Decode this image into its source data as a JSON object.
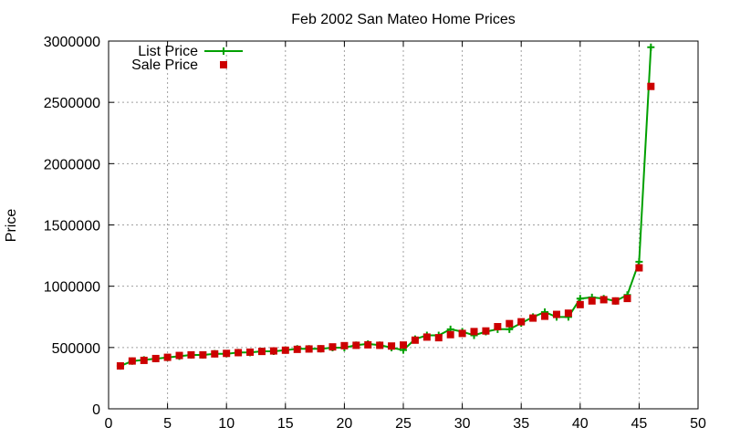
{
  "chart_data": {
    "type": "line",
    "title": "Feb 2002 San Mateo Home Prices",
    "xlabel": "",
    "ylabel": "Price",
    "xlim": [
      0,
      50
    ],
    "ylim": [
      0,
      3000000
    ],
    "xticks": [
      0,
      5,
      10,
      15,
      20,
      25,
      30,
      35,
      40,
      45,
      50
    ],
    "yticks": [
      0,
      500000,
      1000000,
      1500000,
      2000000,
      2500000,
      3000000
    ],
    "grid": true,
    "legend_position": "top-left",
    "x": [
      1,
      2,
      3,
      4,
      5,
      6,
      7,
      8,
      9,
      10,
      11,
      12,
      13,
      14,
      15,
      16,
      17,
      18,
      19,
      20,
      21,
      22,
      23,
      24,
      25,
      26,
      27,
      28,
      29,
      30,
      31,
      32,
      33,
      34,
      35,
      36,
      37,
      38,
      39,
      40,
      41,
      42,
      43,
      44,
      45,
      46
    ],
    "series": [
      {
        "name": "List Price",
        "style": "line-plus",
        "color": "#00a000",
        "values": [
          349000,
          389000,
          399000,
          409000,
          419000,
          429000,
          439000,
          439000,
          449000,
          449000,
          459000,
          459000,
          469000,
          469000,
          479000,
          489000,
          489000,
          489000,
          499000,
          499000,
          519000,
          529000,
          519000,
          499000,
          479000,
          569000,
          599000,
          599000,
          649000,
          629000,
          599000,
          629000,
          649000,
          649000,
          699000,
          749000,
          789000,
          749000,
          749000,
          899000,
          909000,
          899000,
          879000,
          929000,
          1199000,
          2950000
        ]
      },
      {
        "name": "Sale Price",
        "style": "points-square",
        "color": "#cc0000",
        "values": [
          350000,
          390000,
          395000,
          410000,
          420000,
          435000,
          440000,
          440000,
          448000,
          452000,
          458000,
          462000,
          468000,
          472000,
          478000,
          485000,
          488000,
          490000,
          505000,
          515000,
          518000,
          522000,
          518000,
          512000,
          520000,
          560000,
          585000,
          580000,
          605000,
          615000,
          630000,
          635000,
          670000,
          695000,
          710000,
          740000,
          755000,
          770000,
          780000,
          850000,
          880000,
          890000,
          880000,
          900000,
          1150000,
          2630000
        ]
      }
    ]
  }
}
